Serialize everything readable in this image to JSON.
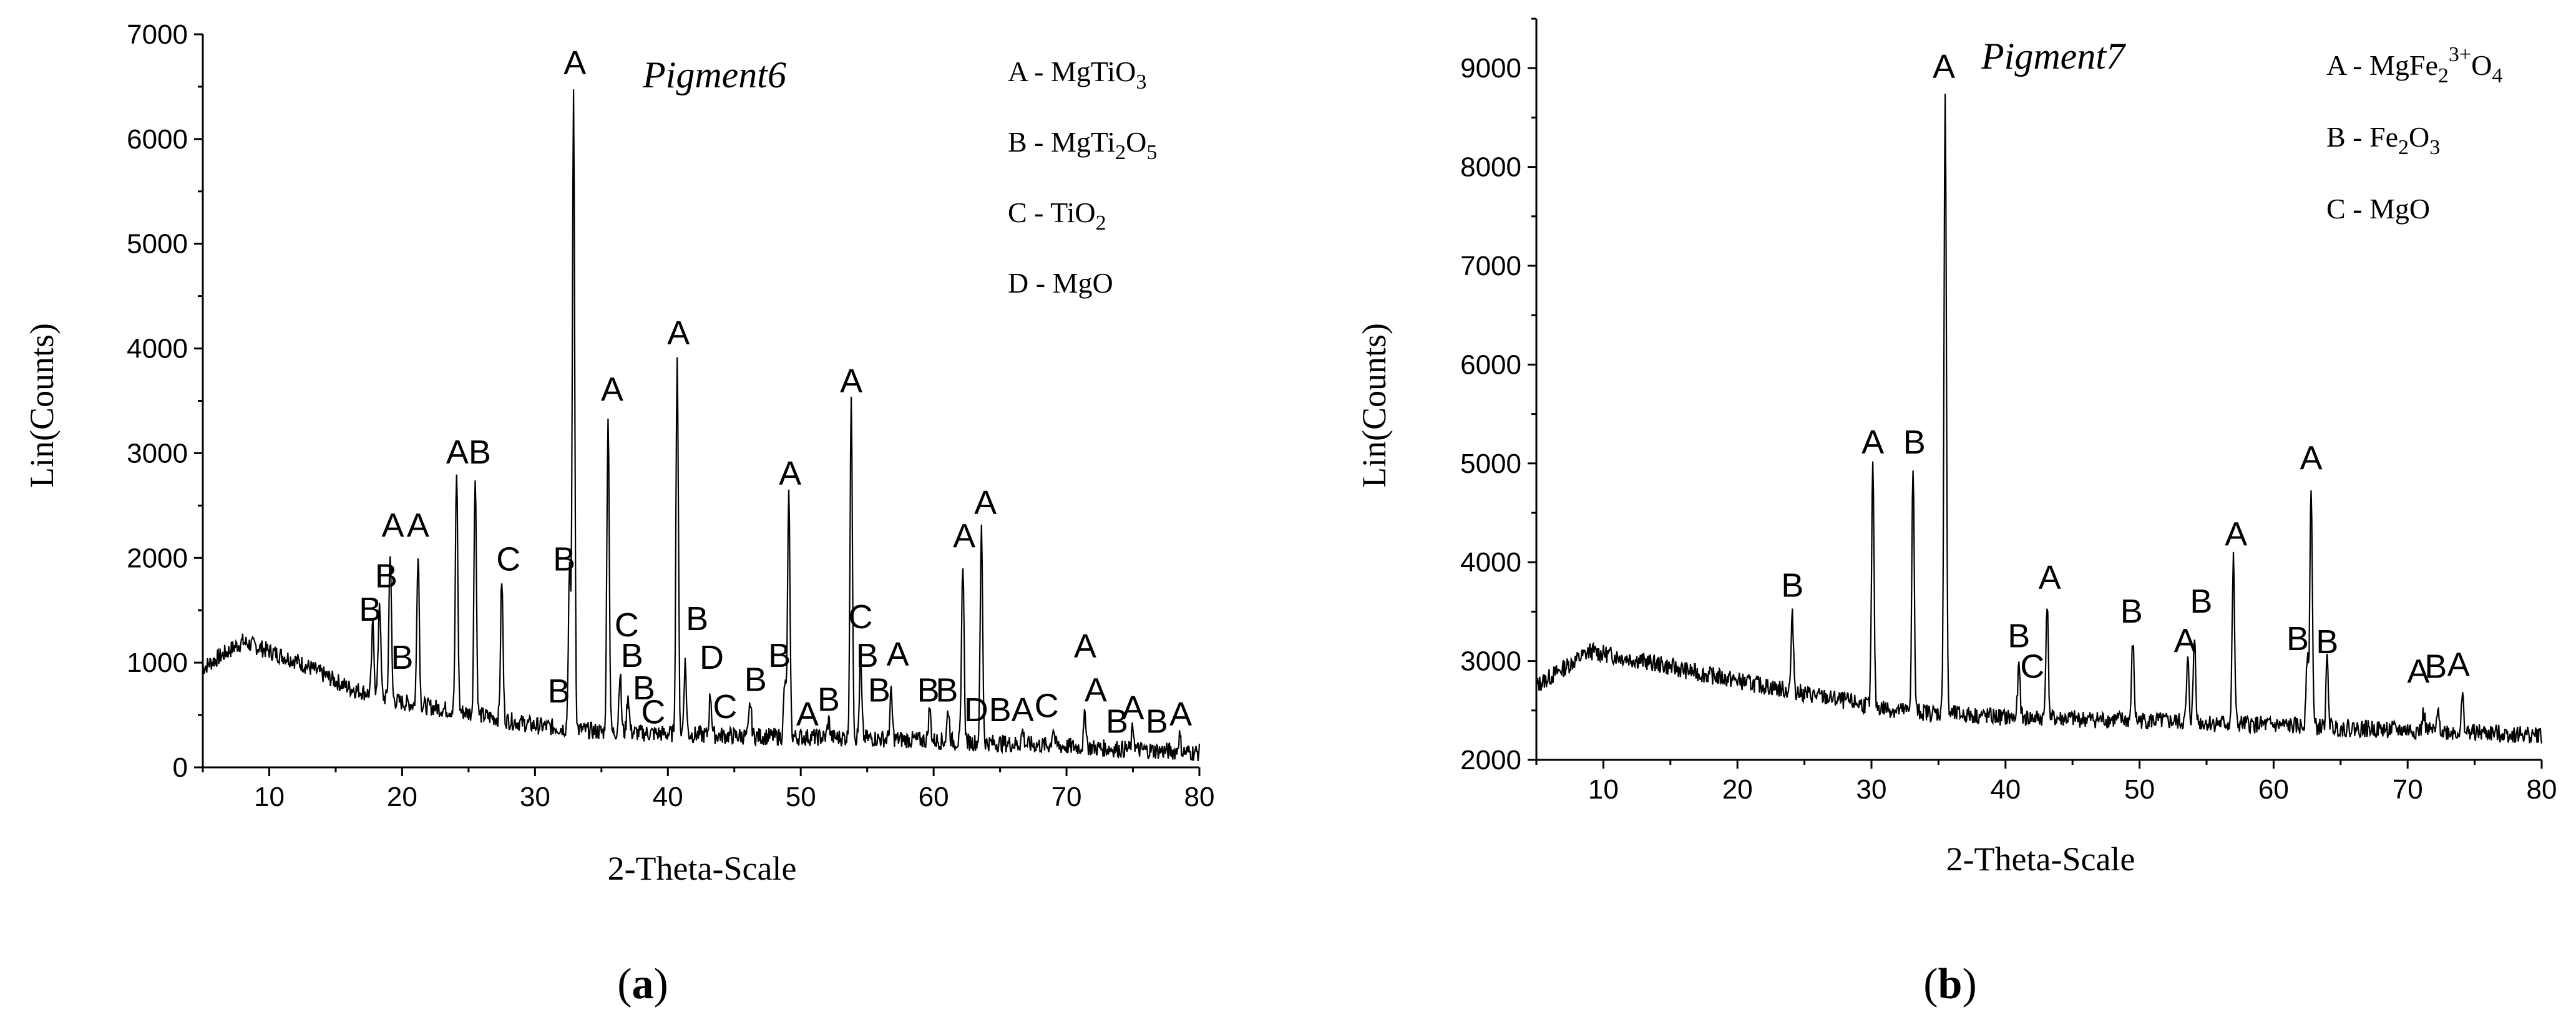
{
  "chart_data": [
    {
      "type": "line",
      "id": "a",
      "caption": "a",
      "title": "Pigment6",
      "xlabel": "2-Theta-Scale",
      "ylabel": "Lin(Counts)",
      "xlim": [
        5,
        80
      ],
      "ylim": [
        0,
        7000
      ],
      "xticks": [
        10,
        20,
        30,
        40,
        50,
        60,
        70,
        80
      ],
      "yticks": [
        0,
        1000,
        2000,
        3000,
        4000,
        5000,
        6000,
        7000
      ],
      "background": [
        [
          5,
          950
        ],
        [
          8,
          1200
        ],
        [
          12,
          1020
        ],
        [
          16,
          760
        ],
        [
          20,
          620
        ],
        [
          25,
          520
        ],
        [
          30,
          400
        ],
        [
          35,
          340
        ],
        [
          45,
          300
        ],
        [
          55,
          280
        ],
        [
          65,
          230
        ],
        [
          75,
          170
        ],
        [
          80,
          140
        ]
      ],
      "peaks": [
        {
          "x": 17.8,
          "y": 1370
        },
        {
          "x": 18.3,
          "y": 1600
        },
        {
          "x": 19.1,
          "y": 2080
        },
        {
          "x": 21.2,
          "y": 2080
        },
        {
          "x": 24.1,
          "y": 2820
        },
        {
          "x": 25.5,
          "y": 2820
        },
        {
          "x": 27.5,
          "y": 1800
        },
        {
          "x": 32.6,
          "y": 1880
        },
        {
          "x": 32.9,
          "y": 6400
        },
        {
          "x": 35.5,
          "y": 3380
        },
        {
          "x": 36.4,
          "y": 900
        },
        {
          "x": 37.0,
          "y": 700
        },
        {
          "x": 40.7,
          "y": 3920
        },
        {
          "x": 41.3,
          "y": 1000
        },
        {
          "x": 43.2,
          "y": 700
        },
        {
          "x": 46.2,
          "y": 620
        },
        {
          "x": 48.8,
          "y": 800
        },
        {
          "x": 49.1,
          "y": 2580
        },
        {
          "x": 52.1,
          "y": 450
        },
        {
          "x": 53.8,
          "y": 3460
        },
        {
          "x": 54.5,
          "y": 1000
        },
        {
          "x": 56.8,
          "y": 700
        },
        {
          "x": 59.7,
          "y": 560
        },
        {
          "x": 61.1,
          "y": 560
        },
        {
          "x": 62.2,
          "y": 1980
        },
        {
          "x": 63.6,
          "y": 2280
        },
        {
          "x": 66.7,
          "y": 350
        },
        {
          "x": 69.0,
          "y": 380
        },
        {
          "x": 71.4,
          "y": 520
        },
        {
          "x": 75.0,
          "y": 380
        },
        {
          "x": 78.5,
          "y": 300
        }
      ],
      "peak_labels": [
        {
          "text": "A",
          "x": 33.0,
          "y": 6620
        },
        {
          "text": "A",
          "x": 35.8,
          "y": 3500
        },
        {
          "text": "A",
          "x": 40.8,
          "y": 4040
        },
        {
          "text": "A",
          "x": 53.8,
          "y": 3580
        },
        {
          "text": "A",
          "x": 49.2,
          "y": 2700
        },
        {
          "text": "A",
          "x": 62.3,
          "y": 2100
        },
        {
          "text": "A",
          "x": 63.9,
          "y": 2420
        },
        {
          "text": "A",
          "x": 71.4,
          "y": 1050
        },
        {
          "text": "AB",
          "x": 25.0,
          "y": 2900
        },
        {
          "text": "A",
          "x": 19.3,
          "y": 2200
        },
        {
          "text": "A",
          "x": 21.2,
          "y": 2200
        },
        {
          "text": "B",
          "x": 18.8,
          "y": 1720
        },
        {
          "text": "B",
          "x": 17.6,
          "y": 1400
        },
        {
          "text": "B",
          "x": 20.0,
          "y": 940
        },
        {
          "text": "C",
          "x": 28.0,
          "y": 1880
        },
        {
          "text": "B",
          "x": 32.2,
          "y": 1880
        },
        {
          "text": "B",
          "x": 31.8,
          "y": 620
        },
        {
          "text": "C",
          "x": 36.9,
          "y": 1250
        },
        {
          "text": "B",
          "x": 37.3,
          "y": 960
        },
        {
          "text": "B",
          "x": 38.2,
          "y": 650
        },
        {
          "text": "C",
          "x": 38.9,
          "y": 420
        },
        {
          "text": "B",
          "x": 42.2,
          "y": 1310
        },
        {
          "text": "D",
          "x": 43.3,
          "y": 940
        },
        {
          "text": "C",
          "x": 44.3,
          "y": 470
        },
        {
          "text": "B",
          "x": 46.6,
          "y": 730
        },
        {
          "text": "B",
          "x": 48.4,
          "y": 960
        },
        {
          "text": "A",
          "x": 50.5,
          "y": 400
        },
        {
          "text": "B",
          "x": 52.1,
          "y": 540
        },
        {
          "text": "C",
          "x": 54.5,
          "y": 1330
        },
        {
          "text": "B",
          "x": 55.0,
          "y": 960
        },
        {
          "text": "B",
          "x": 55.9,
          "y": 630
        },
        {
          "text": "A",
          "x": 57.3,
          "y": 970
        },
        {
          "text": "B",
          "x": 59.6,
          "y": 630
        },
        {
          "text": "B",
          "x": 61.0,
          "y": 630
        },
        {
          "text": "D",
          "x": 63.2,
          "y": 440
        },
        {
          "text": "B",
          "x": 65.0,
          "y": 440
        },
        {
          "text": "A",
          "x": 66.7,
          "y": 440
        },
        {
          "text": "C",
          "x": 68.5,
          "y": 480
        },
        {
          "text": "A",
          "x": 72.2,
          "y": 630
        },
        {
          "text": "B",
          "x": 73.8,
          "y": 330
        },
        {
          "text": "A",
          "x": 75.0,
          "y": 460
        },
        {
          "text": "B",
          "x": 76.8,
          "y": 330
        },
        {
          "text": "A",
          "x": 78.6,
          "y": 400
        }
      ],
      "legend": [
        {
          "key": "A",
          "parts": [
            {
              "t": "A - MgTiO"
            },
            {
              "t": "3",
              "sub": true
            }
          ]
        },
        {
          "key": "B",
          "parts": [
            {
              "t": "B - MgTi"
            },
            {
              "t": "2",
              "sub": true
            },
            {
              "t": "O"
            },
            {
              "t": "5",
              "sub": true
            }
          ]
        },
        {
          "key": "C",
          "parts": [
            {
              "t": "C - TiO"
            },
            {
              "t": "2",
              "sub": true
            }
          ]
        },
        {
          "key": "D",
          "parts": [
            {
              "t": "D - MgO"
            }
          ]
        }
      ]
    },
    {
      "type": "line",
      "id": "b",
      "caption": "b",
      "title": "Pigment7",
      "xlabel": "2-Theta-Scale",
      "ylabel": "Lin(Counts)",
      "xlim": [
        5,
        80
      ],
      "ylim": [
        2000,
        9500
      ],
      "xticks": [
        10,
        20,
        30,
        40,
        50,
        60,
        70,
        80
      ],
      "yticks": [
        2000,
        3000,
        4000,
        5000,
        6000,
        7000,
        8000,
        9000
      ],
      "background": [
        [
          5,
          2750
        ],
        [
          9,
          3100
        ],
        [
          13,
          3000
        ],
        [
          17,
          2880
        ],
        [
          22,
          2750
        ],
        [
          27,
          2620
        ],
        [
          32,
          2500
        ],
        [
          40,
          2430
        ],
        [
          50,
          2400
        ],
        [
          60,
          2350
        ],
        [
          70,
          2300
        ],
        [
          80,
          2250
        ]
      ],
      "peaks": [
        {
          "x": 24.1,
          "y": 3450
        },
        {
          "x": 30.1,
          "y": 4980
        },
        {
          "x": 33.1,
          "y": 4950
        },
        {
          "x": 35.5,
          "y": 8750
        },
        {
          "x": 41.0,
          "y": 2950
        },
        {
          "x": 43.1,
          "y": 3600
        },
        {
          "x": 49.5,
          "y": 3200
        },
        {
          "x": 53.6,
          "y": 3000
        },
        {
          "x": 54.1,
          "y": 3250
        },
        {
          "x": 57.0,
          "y": 4030
        },
        {
          "x": 62.5,
          "y": 3050
        },
        {
          "x": 62.8,
          "y": 4800
        },
        {
          "x": 64.0,
          "y": 3000
        },
        {
          "x": 71.2,
          "y": 2480
        },
        {
          "x": 72.3,
          "y": 2500
        },
        {
          "x": 74.1,
          "y": 2630
        }
      ],
      "peak_labels": [
        {
          "text": "A",
          "x": 35.4,
          "y": 8900
        },
        {
          "text": "A",
          "x": 30.1,
          "y": 5100
        },
        {
          "text": "B",
          "x": 33.2,
          "y": 5100
        },
        {
          "text": "B",
          "x": 24.1,
          "y": 3650
        },
        {
          "text": "B",
          "x": 41.0,
          "y": 3140
        },
        {
          "text": "C",
          "x": 42.0,
          "y": 2830
        },
        {
          "text": "A",
          "x": 43.3,
          "y": 3730
        },
        {
          "text": "B",
          "x": 49.4,
          "y": 3390
        },
        {
          "text": "A",
          "x": 53.4,
          "y": 3090
        },
        {
          "text": "B",
          "x": 54.6,
          "y": 3490
        },
        {
          "text": "A",
          "x": 57.2,
          "y": 4170
        },
        {
          "text": "B",
          "x": 61.8,
          "y": 3110
        },
        {
          "text": "A",
          "x": 62.8,
          "y": 4940
        },
        {
          "text": "B",
          "x": 64.0,
          "y": 3080
        },
        {
          "text": "A",
          "x": 70.8,
          "y": 2780
        },
        {
          "text": "B",
          "x": 72.1,
          "y": 2830
        },
        {
          "text": "A",
          "x": 73.8,
          "y": 2850
        }
      ],
      "legend": [
        {
          "key": "A",
          "parts": [
            {
              "t": "A - MgFe"
            },
            {
              "t": "2",
              "sub": true
            },
            {
              "t": "3+",
              "sup": true
            },
            {
              "t": "O"
            },
            {
              "t": "4",
              "sub": true
            }
          ]
        },
        {
          "key": "B",
          "parts": [
            {
              "t": "B - Fe"
            },
            {
              "t": "2",
              "sub": true
            },
            {
              "t": "O"
            },
            {
              "t": "3",
              "sub": true
            }
          ]
        },
        {
          "key": "C",
          "parts": [
            {
              "t": "C - MgO"
            }
          ]
        }
      ]
    }
  ]
}
